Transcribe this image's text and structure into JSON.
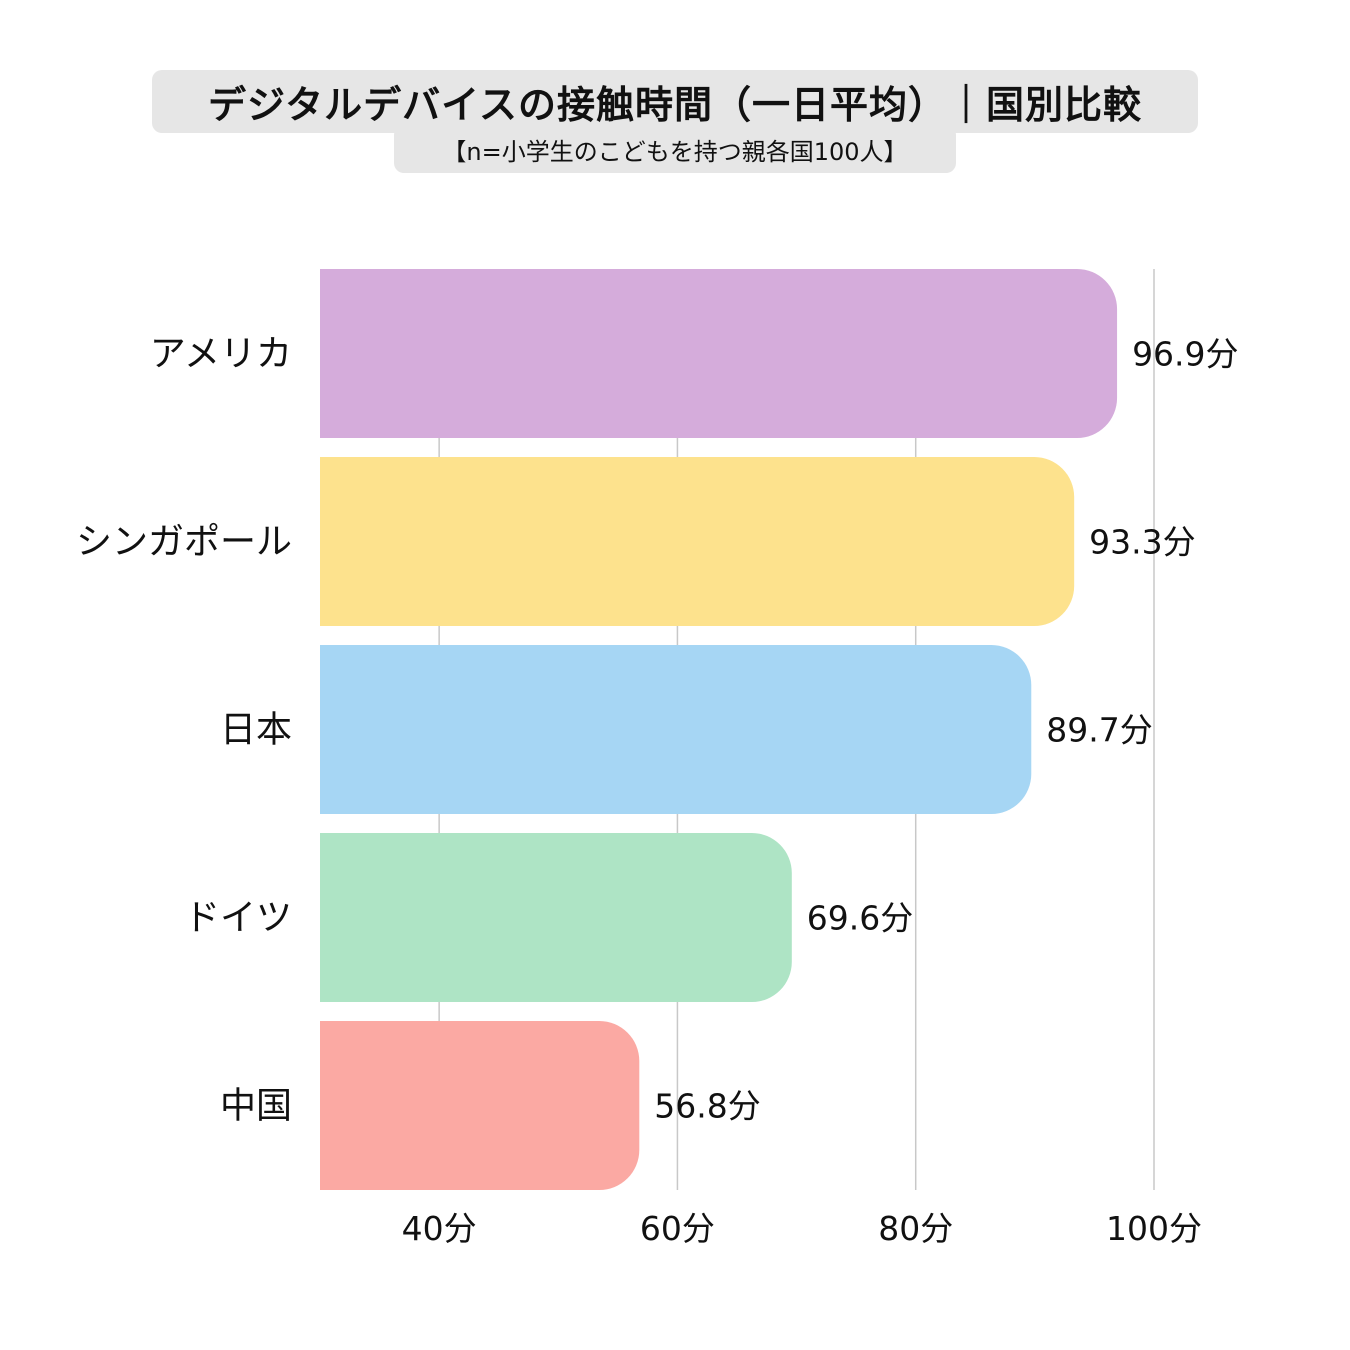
{
  "title": "デジタルデバイスの接触時間（一日平均）｜国別比較",
  "subtitle": "【n=小学生のこどもを持つ親各国100人】",
  "chart_data": {
    "type": "bar",
    "orientation": "horizontal",
    "categories": [
      "アメリカ",
      "シンガポール",
      "日本",
      "ドイツ",
      "中国"
    ],
    "values": [
      96.9,
      93.3,
      89.7,
      69.6,
      56.8
    ],
    "value_labels": [
      "96.9分",
      "93.3分",
      "89.7分",
      "69.6分",
      "56.8分"
    ],
    "colors": [
      "#d5acdb",
      "#fde28d",
      "#a6d6f4",
      "#aee4c5",
      "#fba9a3"
    ],
    "x_ticks": [
      40,
      60,
      80,
      100
    ],
    "x_tick_labels": [
      "40分",
      "60分",
      "80分",
      "100分"
    ],
    "xlim": [
      30,
      100
    ],
    "grid": true,
    "xlabel": "",
    "ylabel": ""
  }
}
